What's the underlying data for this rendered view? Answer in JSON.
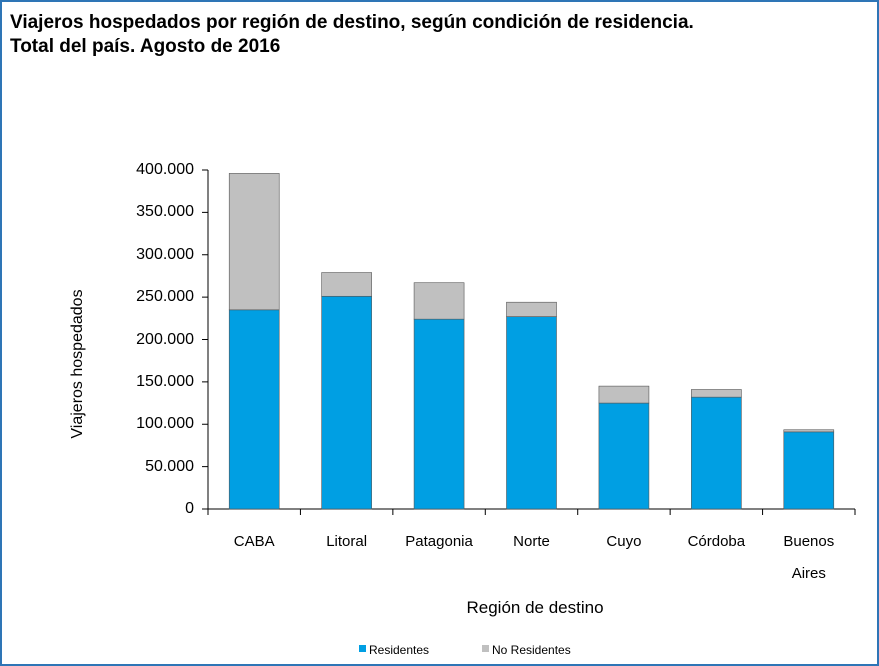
{
  "chart_data": {
    "type": "stacked_bar",
    "title": "Viajeros hospedados por región de destino, según condición de residencia.",
    "subtitle": "Total del país. Agosto de 2016",
    "x_label": "Región de destino",
    "y_label": "Viajeros hospedados",
    "categories": [
      "CABA",
      "Litoral",
      "Patagonia",
      "Norte",
      "Cuyo",
      "Córdoba",
      "Buenos Aires"
    ],
    "series": [
      {
        "name": "Residentes",
        "color": "#009fe3",
        "values": [
          235000,
          251000,
          224000,
          227000,
          125000,
          132000,
          91000
        ]
      },
      {
        "name": "No Residentes",
        "color": "#c0c0c0",
        "values": [
          161000,
          28000,
          43000,
          17000,
          20000,
          9000,
          2500
        ]
      }
    ],
    "ylim": [
      0,
      400000
    ],
    "yticks": [
      0,
      {
        "value": 50000,
        "label": "50.000"
      },
      {
        "value": 100000,
        "label": "100.000"
      },
      {
        "value": 150000,
        "label": "150.000"
      },
      {
        "value": 200000,
        "label": "200.000"
      },
      {
        "value": 250000,
        "label": "250.000"
      },
      {
        "value": 300000,
        "label": "300.000"
      },
      {
        "value": 350000,
        "label": "350.000"
      },
      {
        "value": 400000,
        "label": "400.000"
      }
    ],
    "legend": "bottom"
  }
}
